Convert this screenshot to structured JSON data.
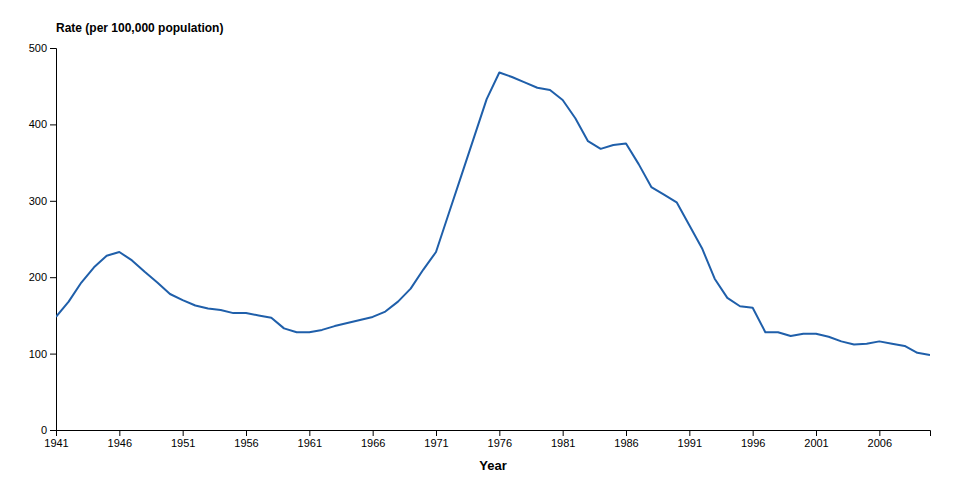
{
  "chart_data": {
    "type": "line",
    "xlabel": "Year",
    "ylabel": "Rate (per 100,000 population)",
    "color": "#1f5faa",
    "xlim": [
      1941,
      2010
    ],
    "ylim": [
      0,
      500
    ],
    "xticks": [
      1941,
      1946,
      1951,
      1956,
      1961,
      1966,
      1971,
      1976,
      1981,
      1986,
      1991,
      1996,
      2001,
      2006
    ],
    "yticks": [
      0,
      100,
      200,
      300,
      400,
      500
    ],
    "grid": false,
    "x": [
      1941,
      1942,
      1943,
      1944,
      1945,
      1946,
      1947,
      1948,
      1949,
      1950,
      1951,
      1952,
      1953,
      1954,
      1955,
      1956,
      1957,
      1958,
      1959,
      1960,
      1961,
      1962,
      1963,
      1964,
      1965,
      1966,
      1967,
      1968,
      1969,
      1970,
      1971,
      1972,
      1973,
      1974,
      1975,
      1976,
      1977,
      1978,
      1979,
      1980,
      1981,
      1982,
      1983,
      1984,
      1985,
      1986,
      1987,
      1988,
      1989,
      1990,
      1991,
      1992,
      1993,
      1994,
      1995,
      1996,
      1997,
      1998,
      1999,
      2000,
      2001,
      2002,
      2003,
      2004,
      2005,
      2006,
      2007,
      2008,
      2009,
      2010
    ],
    "values": [
      148,
      168,
      193,
      213,
      228,
      233,
      222,
      207,
      193,
      178,
      170,
      163,
      159,
      157,
      153,
      153,
      150,
      147,
      133,
      128,
      128,
      131,
      136,
      140,
      144,
      148,
      155,
      168,
      185,
      210,
      233,
      283,
      333,
      383,
      433,
      468,
      462,
      455,
      448,
      445,
      432,
      408,
      378,
      368,
      373,
      375,
      348,
      318,
      308,
      298,
      268,
      238,
      198,
      173,
      162,
      160,
      128,
      128,
      123,
      126,
      126,
      122,
      116,
      112,
      113,
      116,
      113,
      110,
      101,
      98
    ]
  }
}
